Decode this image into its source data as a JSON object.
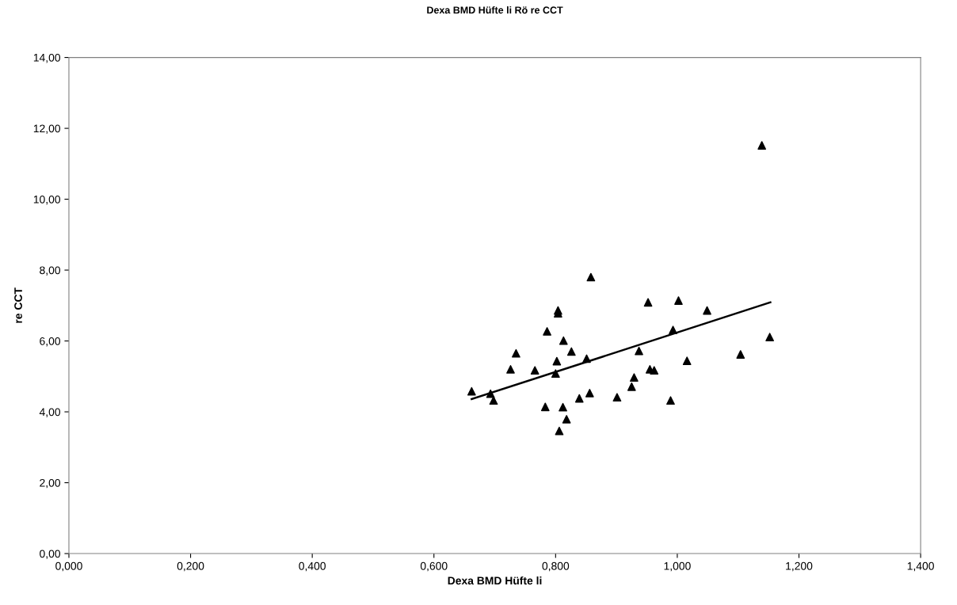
{
  "chart_data": {
    "type": "scatter",
    "title": "Dexa BMD Hüfte li Rö re CCT",
    "xlabel": "Dexa BMD Hüfte li",
    "ylabel": "re CCT",
    "xlim": [
      0,
      1.4
    ],
    "ylim": [
      0,
      14
    ],
    "xticks": [
      {
        "value": 0,
        "label": "0,000"
      },
      {
        "value": 0.2,
        "label": "0,200"
      },
      {
        "value": 0.4,
        "label": "0,400"
      },
      {
        "value": 0.6,
        "label": "0,600"
      },
      {
        "value": 0.8,
        "label": "0,800"
      },
      {
        "value": 1.0,
        "label": "1,000"
      },
      {
        "value": 1.2,
        "label": "1,200"
      },
      {
        "value": 1.4,
        "label": "1,400"
      }
    ],
    "yticks": [
      {
        "value": 0,
        "label": "0,00"
      },
      {
        "value": 2,
        "label": "2,00"
      },
      {
        "value": 4,
        "label": "4,00"
      },
      {
        "value": 6,
        "label": "6,00"
      },
      {
        "value": 8,
        "label": "8,00"
      },
      {
        "value": 10,
        "label": "10,00"
      },
      {
        "value": 12,
        "label": "12,00"
      },
      {
        "value": 14,
        "label": "14,00"
      }
    ],
    "grid": false,
    "legend": false,
    "series": [
      {
        "color": "#000000",
        "marker": "triangle",
        "x": [
          0.662,
          0.693,
          0.698,
          0.726,
          0.735,
          0.766,
          0.786,
          0.783,
          0.804,
          0.804,
          0.813,
          0.802,
          0.8,
          0.812,
          0.818,
          0.806,
          0.826,
          0.839,
          0.851,
          0.856,
          0.858,
          0.901,
          0.925,
          0.929,
          0.937,
          0.952,
          0.955,
          0.962,
          0.989,
          0.993,
          1.002,
          1.016,
          1.049,
          1.104,
          1.152,
          1.139
        ],
        "values": [
          4.58,
          4.51,
          4.32,
          5.2,
          5.65,
          5.17,
          6.27,
          4.14,
          6.86,
          6.78,
          6.01,
          5.43,
          5.08,
          4.13,
          3.79,
          3.46,
          5.7,
          4.38,
          5.5,
          4.53,
          7.8,
          4.41,
          4.71,
          4.97,
          5.72,
          7.09,
          5.2,
          5.17,
          4.32,
          6.31,
          7.14,
          5.44,
          6.86,
          5.62,
          6.11,
          11.52
        ]
      },
      {
        "type": "line",
        "color": "#000000",
        "marker": "none",
        "line_style": "solid",
        "x": [
          0.662,
          1.153
        ],
        "values": [
          4.36,
          7.09
        ]
      }
    ]
  }
}
